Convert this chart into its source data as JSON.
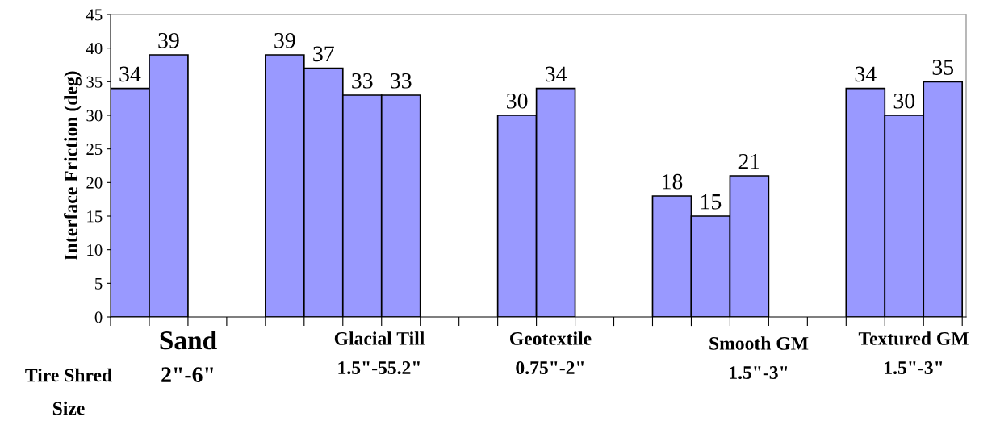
{
  "chart_data": {
    "type": "bar",
    "categories": [
      null,
      null,
      null,
      null,
      null,
      null,
      null,
      null,
      null,
      null,
      null,
      null,
      null,
      null,
      null,
      null,
      null,
      null,
      null,
      null,
      null,
      null
    ],
    "values": [
      34,
      39,
      null,
      null,
      39,
      37,
      33,
      33,
      null,
      null,
      30,
      34,
      null,
      null,
      18,
      15,
      21,
      null,
      null,
      34,
      30,
      35
    ],
    "color": "#9999ff",
    "ylabel": "Interface Friction (deg)",
    "xlabel": "Tire Shred\nSize",
    "ylim": [
      0,
      45
    ],
    "yticks": [
      0,
      5,
      10,
      15,
      20,
      25,
      30,
      35,
      40,
      45
    ],
    "data_labels": true,
    "grid": false,
    "legend": false,
    "annotations": [
      "Sand",
      "2\"-6\"",
      "Glacial Till\n1.5\"-55.2\"",
      "Geotextile\n0.75\"-2\"",
      "Smooth GM\n1.5\"-3\"",
      "Textured GM\n1.5\"-3\""
    ]
  }
}
